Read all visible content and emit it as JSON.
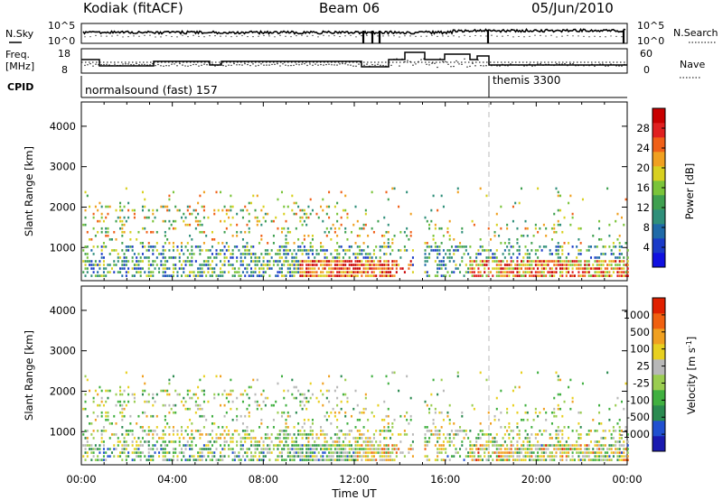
{
  "header": {
    "title": "Kodiak (fitACF)",
    "beam": "Beam 06",
    "date": "05/Jun/2010"
  },
  "top_panel": {
    "left_label": "N.Sky",
    "right_label": "N.Search",
    "left_ticks": [
      "10^5",
      "10^0"
    ],
    "right_ticks": [
      "10^5",
      "10^0"
    ]
  },
  "freq_panel": {
    "left_label_1": "Freq.",
    "left_label_2": "[MHz]",
    "right_label": "Nave",
    "left_ticks": [
      "18",
      "8"
    ],
    "right_ticks": [
      "60",
      "0"
    ]
  },
  "cpid_panel": {
    "label": "CPID",
    "segments": [
      "normalsound (fast) 157",
      "themis 3300"
    ]
  },
  "chart_data": [
    {
      "type": "heatmap",
      "name": "power",
      "ylabel": "Slant Range [km]",
      "yticks": [
        1000,
        2000,
        3000,
        4000
      ],
      "ylim": [
        180,
        4600
      ],
      "xlim": [
        0,
        24
      ],
      "colorbar_label": "Power [dB]",
      "colorbar_ticks": [
        "28",
        "24",
        "20",
        "16",
        "12",
        "8",
        "4"
      ],
      "colors": [
        "#1010e0",
        "#1a3ac8",
        "#1f6aa8",
        "#2f8f7a",
        "#3fa050",
        "#7ac43a",
        "#d8d020",
        "#f0a020",
        "#f06018",
        "#e02020",
        "#c80000"
      ]
    },
    {
      "type": "heatmap",
      "name": "velocity",
      "ylabel": "Slant Range [km]",
      "yticks": [
        1000,
        2000,
        3000,
        4000
      ],
      "ylim": [
        180,
        4600
      ],
      "xlim": [
        0,
        24
      ],
      "xlabel": "Time UT",
      "xticks": [
        "00:00",
        "04:00",
        "08:00",
        "12:00",
        "16:00",
        "20:00",
        "00:00"
      ],
      "colorbar_label": "Velocity [m s",
      "colorbar_label_sup": "-1",
      "colorbar_label_end": "]",
      "colorbar_ticks": [
        "1000",
        "500",
        "100",
        "25",
        "-25",
        "-100",
        "-500",
        "-1000"
      ],
      "colors": [
        "#1a1ab0",
        "#2050d0",
        "#2a8a50",
        "#40b040",
        "#9acd50",
        "#b8b8b8",
        "#e8d020",
        "#f0a020",
        "#f06010",
        "#e02000"
      ]
    }
  ]
}
